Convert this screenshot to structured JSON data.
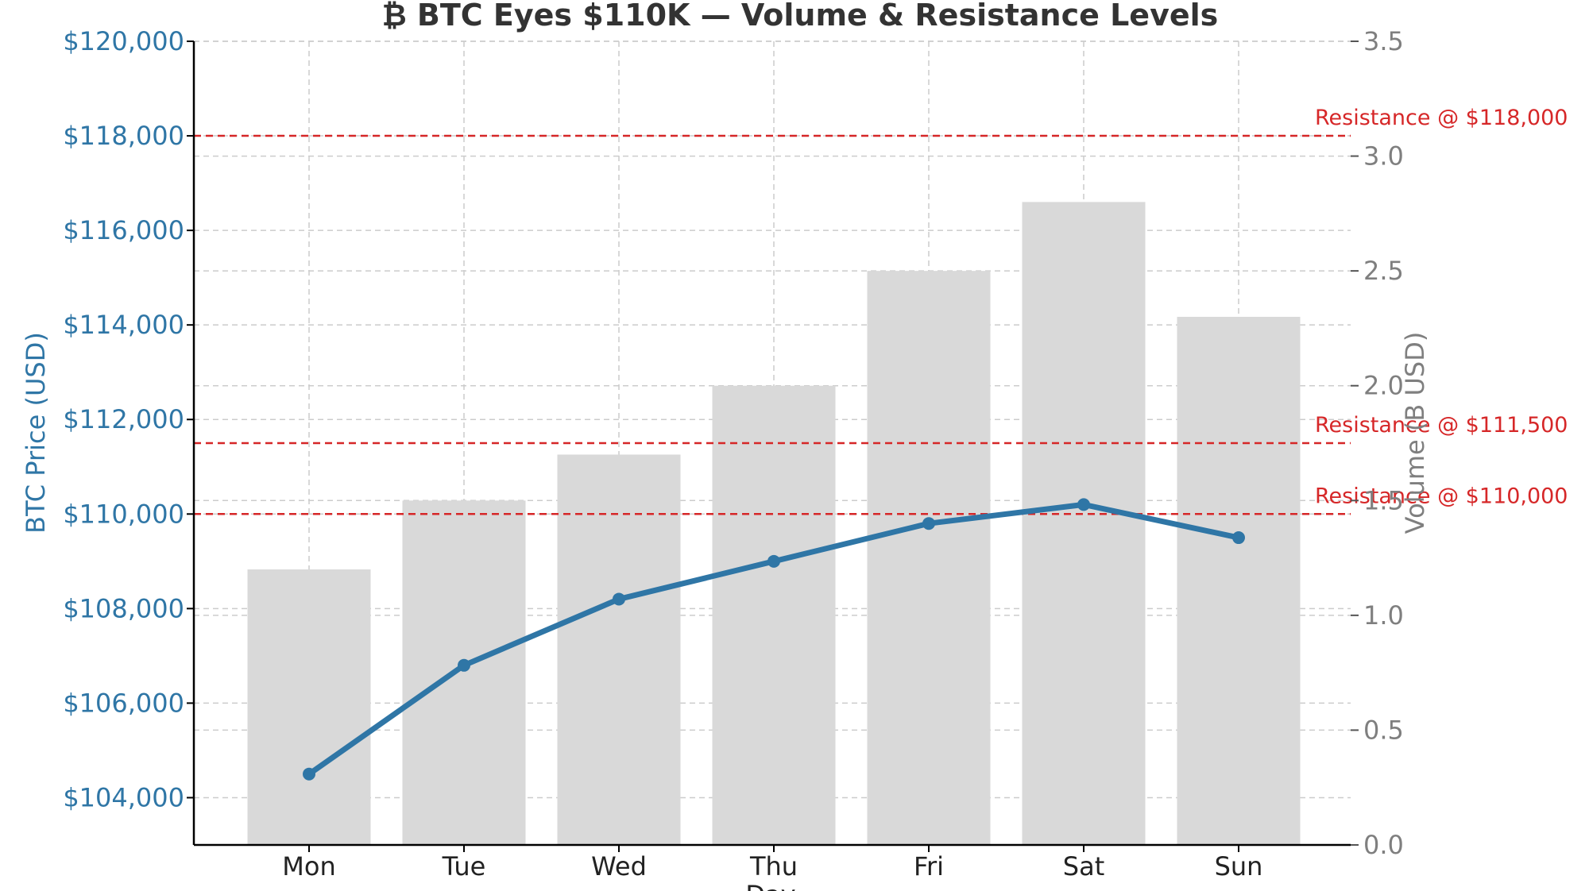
{
  "chart_data": {
    "type": "bar+line",
    "title": "₿ BTC Eyes $110K — Volume & Resistance Levels",
    "categories": [
      "Mon",
      "Tue",
      "Wed",
      "Thu",
      "Fri",
      "Sat",
      "Sun"
    ],
    "xlabel": "Day",
    "series": [
      {
        "name": "BTC Price (USD)",
        "type": "line",
        "axis": "left",
        "values": [
          104500,
          106800,
          108200,
          109000,
          109800,
          110200,
          109500
        ],
        "color": "#2f76a6"
      },
      {
        "name": "Volume (B USD)",
        "type": "bar",
        "axis": "right",
        "values": [
          1.2,
          1.5,
          1.7,
          2.0,
          2.5,
          2.8,
          2.3
        ],
        "color": "#d9d9d9"
      }
    ],
    "left_axis": {
      "label": "BTC Price (USD)",
      "ylim": [
        103000,
        120000
      ],
      "ticks": [
        104000,
        106000,
        108000,
        110000,
        112000,
        114000,
        116000,
        118000,
        120000
      ],
      "tick_labels": [
        "$104,000",
        "$106,000",
        "$108,000",
        "$110,000",
        "$112,000",
        "$114,000",
        "$116,000",
        "$118,000",
        "$120,000"
      ],
      "color": "#2f76a6"
    },
    "right_axis": {
      "label": "Volume (B USD)",
      "ylim": [
        0,
        3.5
      ],
      "ticks": [
        0,
        0.5,
        1.0,
        1.5,
        2.0,
        2.5,
        3.0,
        3.5
      ],
      "tick_labels": [
        "0.0",
        "0.5",
        "1.0",
        "1.5",
        "2.0",
        "2.5",
        "3.0",
        "3.5"
      ],
      "color": "#7f7f7f"
    },
    "resistance_levels": [
      {
        "value": 118000,
        "label": "Resistance @ $118,000"
      },
      {
        "value": 111500,
        "label": "Resistance @ $111,500"
      },
      {
        "value": 110000,
        "label": "Resistance @ $110,000"
      }
    ],
    "resistance_color": "#d62728",
    "grid": true
  }
}
